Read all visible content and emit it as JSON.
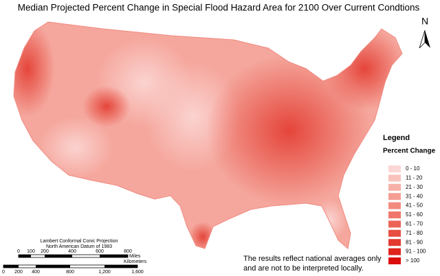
{
  "title": "Median Projected Percent Change in Special Flood Hazard Area for 2100 Over Current Condtions",
  "north": "N",
  "legend": {
    "title": "Legend",
    "subtitle": "Percent Change",
    "items": [
      {
        "label": "0 - 10",
        "color": "#fbd6d4"
      },
      {
        "label": "11 - 20",
        "color": "#f9c3bd"
      },
      {
        "label": "21 - 30",
        "color": "#f7b0a8"
      },
      {
        "label": "31 - 40",
        "color": "#f59e94"
      },
      {
        "label": "41 - 50",
        "color": "#f28b80"
      },
      {
        "label": "51 - 60",
        "color": "#ef776b"
      },
      {
        "label": "61 - 70",
        "color": "#ec6356"
      },
      {
        "label": "71 - 80",
        "color": "#e84e42"
      },
      {
        "label": "81 - 90",
        "color": "#e43a2f"
      },
      {
        "label": "91 - 100",
        "color": "#df251c"
      },
      {
        "label": "> 100",
        "color": "#da0d0b"
      }
    ]
  },
  "projection": [
    "Lambert Conformal Conic Projection",
    "North American Datum of 1983"
  ],
  "scale": {
    "miles": {
      "ticks": [
        "0",
        "100",
        "200",
        "400",
        "600",
        "800"
      ],
      "unit": "Miles"
    },
    "kilometers": {
      "ticks": [
        "0",
        "200",
        "400",
        "800",
        "1,200",
        "1,600"
      ],
      "unit": "Kilometers"
    }
  },
  "note": [
    "The results reflect national averages only",
    "and are not to be interpreted locally."
  ]
}
